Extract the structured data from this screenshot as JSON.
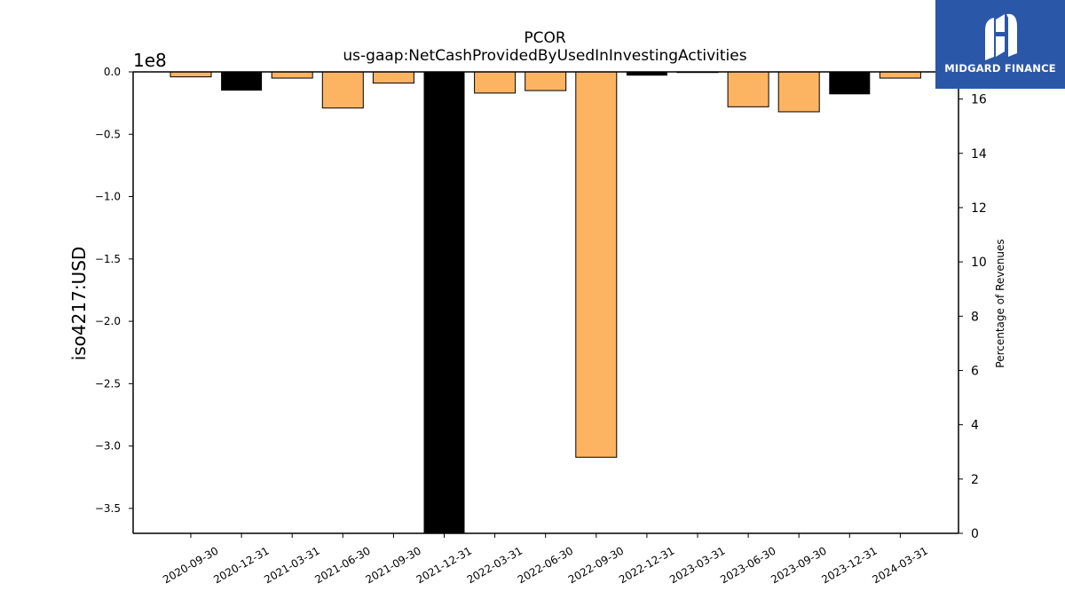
{
  "chart_data": {
    "type": "bar",
    "title": "PCOR",
    "subtitle": "us-gaap:NetCashProvidedByUsedInInvestingActivities",
    "ylabel": "iso4217:USD",
    "y_offset_label": "1e8",
    "y2label": "Percentage of Revenues",
    "ylim": [
      -3.7,
      0.0
    ],
    "yticks": [
      0.0,
      -0.5,
      -1.0,
      -1.5,
      -2.0,
      -2.5,
      -3.0,
      -3.5
    ],
    "y2lim": [
      0,
      17
    ],
    "y2ticks": [
      0,
      2,
      4,
      6,
      8,
      10,
      12,
      14,
      16
    ],
    "categories": [
      "2020-09-30",
      "2020-12-31",
      "2021-03-31",
      "2021-06-30",
      "2021-09-30",
      "2021-12-31",
      "2022-03-31",
      "2022-06-30",
      "2022-09-30",
      "2022-12-31",
      "2023-03-31",
      "2023-06-30",
      "2023-09-30",
      "2023-12-31",
      "2024-03-31"
    ],
    "values": [
      -0.04,
      -0.15,
      -0.05,
      -0.29,
      -0.09,
      -3.7,
      -0.17,
      -0.15,
      -3.09,
      -0.03,
      -0.005,
      -0.28,
      -0.32,
      -0.18,
      -0.05
    ],
    "bar_colors": [
      "#fdb462",
      "#000000",
      "#fdb462",
      "#fdb462",
      "#fdb462",
      "#000000",
      "#fdb462",
      "#fdb462",
      "#fdb462",
      "#000000",
      "#fdb462",
      "#fdb462",
      "#fdb462",
      "#000000",
      "#fdb462"
    ],
    "grid": false,
    "legend": "none"
  },
  "brand": {
    "name": "MIDGARD FINANCE",
    "background": "#2b57a8"
  }
}
